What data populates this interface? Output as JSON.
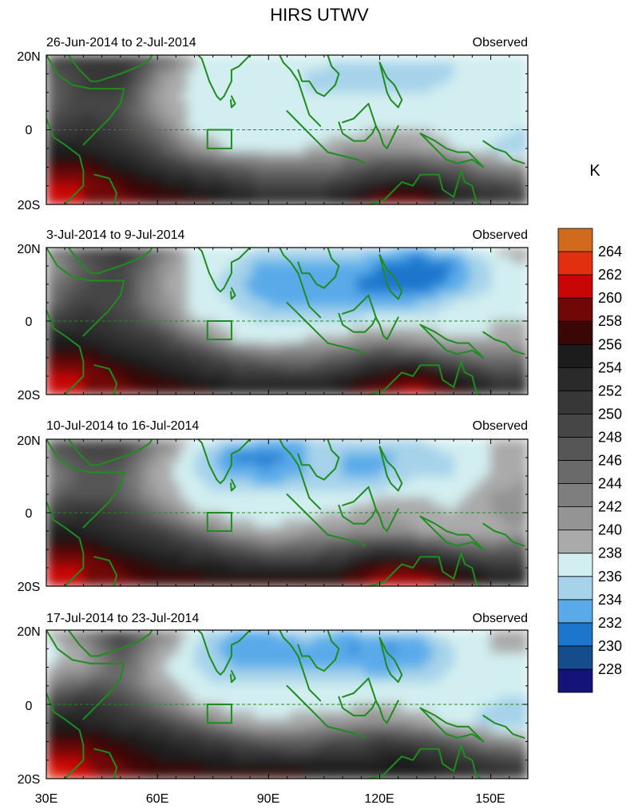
{
  "title": "HIRS UTWV",
  "unit": "K",
  "colors": {
    "coast": "#1e8c1e",
    "equator": "#1e8c1e",
    "box": "#1e8c1e"
  },
  "colorbar": {
    "levels": [
      228,
      230,
      232,
      234,
      236,
      238,
      240,
      242,
      244,
      246,
      248,
      250,
      252,
      254,
      256,
      258,
      260,
      262,
      264
    ],
    "colors": [
      "#13137a",
      "#154d8c",
      "#1d76cc",
      "#5aaaea",
      "#a6d2ea",
      "#d2eef0",
      "#aaaaaa",
      "#949494",
      "#7e7e7e",
      "#6a6a6a",
      "#565656",
      "#464646",
      "#373737",
      "#2a2a2a",
      "#1c1c1c",
      "#3a0606",
      "#700808",
      "#c80606",
      "#e03010",
      "#d26a1e"
    ]
  },
  "panels": [
    {
      "date_label": "26-Jun-2014 to 2-Jul-2014",
      "status_label": "Observed"
    },
    {
      "date_label": "3-Jul-2014 to 9-Jul-2014",
      "status_label": "Observed"
    },
    {
      "date_label": "10-Jul-2014 to 16-Jul-2014",
      "status_label": "Observed"
    },
    {
      "date_label": "17-Jul-2014 to 23-Jul-2014",
      "status_label": "Observed"
    }
  ],
  "y_ticks": [
    "20N",
    "0",
    "20S"
  ],
  "x_ticks": [
    "30E",
    "60E",
    "90E",
    "120E",
    "150E"
  ],
  "chart_data": {
    "type": "heatmap",
    "title": "HIRS UTWV",
    "unit": "K",
    "x_range": [
      30,
      160
    ],
    "y_range": [
      -20,
      20
    ],
    "x_ticks": [
      30,
      60,
      90,
      120,
      150
    ],
    "y_ticks": [
      20,
      0,
      -20
    ],
    "panels": [
      {
        "label": "26-Jun-2014 to 2-Jul-2014",
        "lon": [
          30,
          40,
          50,
          60,
          70,
          80,
          90,
          100,
          110,
          120,
          130,
          140,
          150,
          160
        ],
        "lat": [
          20,
          15,
          10,
          5,
          0,
          -5,
          -10,
          -15,
          -20
        ],
        "values": [
          [
            250,
            252,
            252,
            248,
            238,
            237,
            238,
            237,
            237,
            237,
            237,
            236,
            238,
            237
          ],
          [
            246,
            250,
            252,
            242,
            237,
            236,
            237,
            236,
            235,
            235,
            234,
            236,
            237,
            236
          ],
          [
            244,
            250,
            250,
            240,
            237,
            237,
            236,
            236,
            236,
            236,
            236,
            237,
            237,
            236
          ],
          [
            246,
            250,
            248,
            241,
            237,
            236,
            236,
            236,
            236,
            237,
            237,
            237,
            238,
            237
          ],
          [
            250,
            252,
            250,
            244,
            237,
            236,
            236,
            236,
            236,
            238,
            238,
            237,
            237,
            236
          ],
          [
            254,
            254,
            252,
            248,
            241,
            237,
            237,
            238,
            240,
            241,
            240,
            238,
            236,
            234
          ],
          [
            258,
            258,
            255,
            252,
            249,
            246,
            244,
            243,
            245,
            248,
            248,
            246,
            242,
            240
          ],
          [
            260,
            260,
            258,
            256,
            254,
            252,
            249,
            248,
            251,
            254,
            256,
            252,
            249,
            247
          ],
          [
            260,
            260,
            259,
            258,
            257,
            256,
            254,
            254,
            256,
            260,
            259,
            256,
            253,
            252
          ]
        ]
      },
      {
        "label": "3-Jul-2014 to 9-Jul-2014",
        "lon": [
          30,
          40,
          50,
          60,
          70,
          80,
          90,
          100,
          110,
          120,
          130,
          140,
          150,
          160
        ],
        "lat": [
          20,
          15,
          10,
          5,
          0,
          -5,
          -10,
          -15,
          -20
        ],
        "values": [
          [
            242,
            248,
            252,
            246,
            237,
            237,
            236,
            236,
            236,
            235,
            234,
            236,
            238,
            240
          ],
          [
            240,
            246,
            250,
            242,
            237,
            236,
            233,
            233,
            234,
            232,
            230,
            232,
            236,
            238
          ],
          [
            242,
            248,
            250,
            241,
            237,
            235,
            232,
            232,
            232,
            231,
            230,
            233,
            236,
            238
          ],
          [
            244,
            250,
            248,
            242,
            237,
            236,
            234,
            233,
            234,
            233,
            234,
            236,
            237,
            238
          ],
          [
            250,
            252,
            250,
            245,
            238,
            237,
            236,
            236,
            236,
            237,
            237,
            237,
            238,
            238
          ],
          [
            254,
            254,
            252,
            250,
            244,
            238,
            237,
            238,
            239,
            241,
            240,
            238,
            238,
            239
          ],
          [
            258,
            258,
            255,
            253,
            251,
            247,
            244,
            244,
            246,
            250,
            249,
            246,
            244,
            244
          ],
          [
            260,
            260,
            258,
            256,
            254,
            252,
            251,
            250,
            253,
            256,
            258,
            254,
            250,
            249
          ],
          [
            260,
            260,
            259,
            258,
            257,
            256,
            255,
            255,
            257,
            260,
            261,
            258,
            255,
            253
          ]
        ]
      },
      {
        "label": "10-Jul-2014 to 16-Jul-2014",
        "lon": [
          30,
          40,
          50,
          60,
          70,
          80,
          90,
          100,
          110,
          120,
          130,
          140,
          150,
          160
        ],
        "lat": [
          20,
          15,
          10,
          5,
          0,
          -5,
          -10,
          -15,
          -20
        ],
        "values": [
          [
            248,
            250,
            250,
            244,
            237,
            236,
            234,
            234,
            236,
            236,
            236,
            237,
            238,
            240
          ],
          [
            244,
            248,
            248,
            240,
            236,
            232,
            231,
            234,
            234,
            233,
            235,
            236,
            238,
            240
          ],
          [
            242,
            246,
            246,
            239,
            236,
            234,
            233,
            234,
            234,
            234,
            236,
            236,
            238,
            240
          ],
          [
            244,
            248,
            246,
            240,
            237,
            236,
            236,
            236,
            236,
            237,
            238,
            237,
            240,
            241
          ],
          [
            250,
            252,
            250,
            244,
            238,
            237,
            237,
            237,
            238,
            240,
            239,
            238,
            240,
            242
          ],
          [
            254,
            254,
            252,
            250,
            245,
            240,
            238,
            240,
            241,
            242,
            240,
            238,
            239,
            240
          ],
          [
            258,
            258,
            255,
            253,
            251,
            248,
            245,
            246,
            248,
            251,
            250,
            247,
            245,
            246
          ],
          [
            260,
            260,
            258,
            256,
            255,
            254,
            253,
            252,
            254,
            258,
            258,
            255,
            252,
            251
          ],
          [
            260,
            260,
            259,
            258,
            258,
            257,
            258,
            258,
            259,
            261,
            262,
            259,
            256,
            254
          ]
        ]
      },
      {
        "label": "17-Jul-2014 to 23-Jul-2014",
        "lon": [
          30,
          40,
          50,
          60,
          70,
          80,
          90,
          100,
          110,
          120,
          130,
          140,
          150,
          160
        ],
        "lat": [
          20,
          15,
          10,
          5,
          0,
          -5,
          -10,
          -15,
          -20
        ],
        "values": [
          [
            238,
            244,
            250,
            244,
            237,
            234,
            234,
            236,
            234,
            235,
            236,
            237,
            238,
            238
          ],
          [
            236,
            240,
            248,
            240,
            236,
            233,
            233,
            233,
            232,
            232,
            232,
            236,
            238,
            238
          ],
          [
            238,
            240,
            246,
            238,
            236,
            234,
            234,
            234,
            234,
            233,
            234,
            236,
            237,
            238
          ],
          [
            242,
            246,
            246,
            240,
            237,
            236,
            236,
            236,
            236,
            236,
            236,
            237,
            237,
            237
          ],
          [
            250,
            252,
            250,
            244,
            238,
            237,
            237,
            237,
            237,
            238,
            237,
            237,
            236,
            235
          ],
          [
            254,
            254,
            252,
            250,
            245,
            240,
            238,
            239,
            241,
            242,
            240,
            237,
            235,
            234
          ],
          [
            258,
            258,
            256,
            254,
            252,
            249,
            246,
            246,
            248,
            250,
            249,
            246,
            242,
            240
          ],
          [
            261,
            260,
            258,
            256,
            255,
            254,
            253,
            252,
            253,
            254,
            254,
            252,
            250,
            248
          ],
          [
            264,
            261,
            259,
            258,
            258,
            257,
            258,
            257,
            256,
            256,
            256,
            254,
            253,
            252
          ]
        ]
      }
    ]
  }
}
